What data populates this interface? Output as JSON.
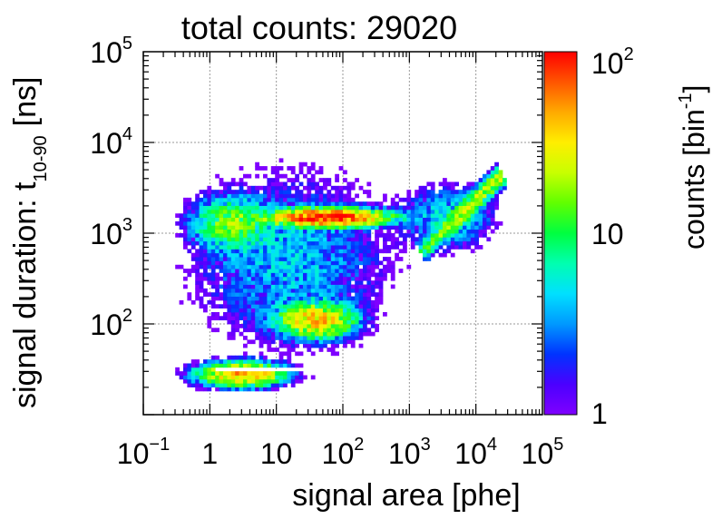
{
  "chart_data": {
    "type": "heatmap",
    "title": "total counts: 29020",
    "xlabel": "signal area [phe]",
    "ylabel_main": "signal duration: t",
    "ylabel_subscript": "10-90",
    "ylabel_unit": "[ns]",
    "x_scale": "log",
    "y_scale": "log",
    "xlim": [
      0.1,
      100000
    ],
    "ylim": [
      10,
      100000
    ],
    "grid": true,
    "x_ticks": [
      {
        "value": 0.1,
        "base": "10",
        "exp": "−1"
      },
      {
        "value": 1,
        "base": "1",
        "exp": ""
      },
      {
        "value": 10,
        "base": "10",
        "exp": ""
      },
      {
        "value": 100,
        "base": "10",
        "exp": "2"
      },
      {
        "value": 1000,
        "base": "10",
        "exp": "3"
      },
      {
        "value": 10000,
        "base": "10",
        "exp": "4"
      },
      {
        "value": 100000,
        "base": "10",
        "exp": "5"
      }
    ],
    "y_ticks": [
      {
        "value": 100,
        "base": "10",
        "exp": "2"
      },
      {
        "value": 1000,
        "base": "10",
        "exp": "3"
      },
      {
        "value": 10000,
        "base": "10",
        "exp": "4"
      },
      {
        "value": 100000,
        "base": "10",
        "exp": "5"
      }
    ],
    "colorbar": {
      "label_main": "counts [bin",
      "label_exp": "-1",
      "label_close": "]",
      "scale": "log",
      "range": [
        1,
        100
      ],
      "ticks": [
        {
          "value": 100,
          "base": "10",
          "exp": "2"
        },
        {
          "value": 10,
          "base": "10",
          "exp": ""
        },
        {
          "value": 1,
          "base": "1",
          "exp": ""
        }
      ],
      "palette": [
        "#7f00ff",
        "#4b00ff",
        "#0033ff",
        "#0099ff",
        "#00e0ff",
        "#00ffb0",
        "#00ff40",
        "#60ff00",
        "#c8ff00",
        "#ffee00",
        "#ffaa00",
        "#ff5500",
        "#ff0000"
      ]
    },
    "features": [
      {
        "name": "",
        "x_center": 60,
        "y_center": 1500,
        "x_sigma_dec": 0.45,
        "y_sigma_dec": 0.05,
        "peak_counts": 100
      },
      {
        "name": "",
        "x_center": 2,
        "y_center": 1300,
        "x_sigma_dec": 0.3,
        "y_sigma_dec": 0.15,
        "peak_counts": 15
      },
      {
        "name": "",
        "x_center": 40,
        "y_center": 110,
        "x_sigma_dec": 0.3,
        "y_sigma_dec": 0.1,
        "peak_counts": 40
      },
      {
        "name": "",
        "x_center": 3,
        "y_center": 28,
        "x_sigma_dec": 0.35,
        "y_sigma_dec": 0.07,
        "peak_counts": 45
      },
      {
        "name": "",
        "x_center": 15,
        "y_center": 500,
        "x_sigma_dec": 0.8,
        "y_sigma_dec": 0.5,
        "peak_counts": 4
      },
      {
        "name": "",
        "x_center": 4000,
        "y_center": 1500,
        "x_sigma_dec": 0.4,
        "y_sigma_dec": 0.2,
        "peak_counts": 5
      }
    ],
    "diagonal_band": {
      "x_start": 1500,
      "y_start": 600,
      "x_end": 25000,
      "y_end": 4500,
      "peak_counts": 25
    },
    "white_stripe_y": 32,
    "white_stripe_x": [
      1.2,
      90
    ]
  }
}
